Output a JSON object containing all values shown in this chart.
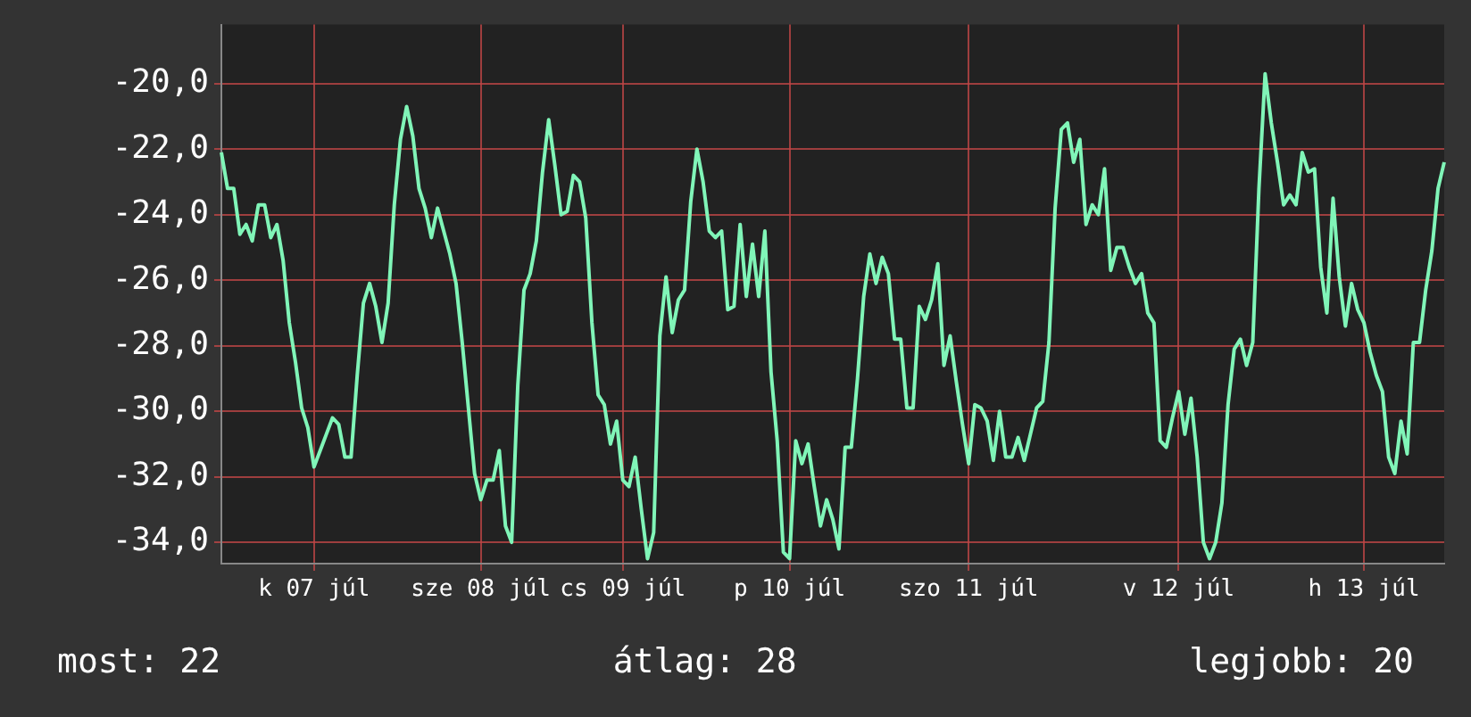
{
  "chart_data": {
    "type": "line",
    "categories": [
      null,
      null,
      null,
      null,
      null,
      null,
      null,
      null,
      null,
      null,
      null,
      null,
      null,
      null,
      null,
      "k 07 júl",
      null,
      null,
      null,
      null,
      null,
      null,
      null,
      null,
      null,
      null,
      null,
      null,
      null,
      null,
      null,
      null,
      null,
      null,
      null,
      null,
      null,
      null,
      null,
      null,
      null,
      null,
      "sze 08 júl",
      null,
      null,
      null,
      null,
      null,
      null,
      null,
      null,
      null,
      null,
      null,
      null,
      null,
      null,
      null,
      null,
      null,
      null,
      null,
      null,
      null,
      null,
      "cs 09 júl",
      null,
      null,
      null,
      null,
      null,
      null,
      null,
      null,
      null,
      null,
      null,
      null,
      null,
      null,
      null,
      null,
      null,
      null,
      null,
      null,
      null,
      null,
      null,
      null,
      null,
      null,
      "p 10 júl",
      null,
      null,
      null,
      null,
      null,
      null,
      null,
      null,
      null,
      null,
      null,
      null,
      null,
      null,
      null,
      null,
      null,
      null,
      null,
      null,
      null,
      null,
      null,
      null,
      null,
      null,
      null,
      null,
      "szo 11 júl",
      null,
      null,
      null,
      null,
      null,
      null,
      null,
      null,
      null,
      null,
      null,
      null,
      null,
      null,
      null,
      null,
      null,
      null,
      null,
      null,
      null,
      null,
      null,
      null,
      null,
      null,
      null,
      null,
      null,
      null,
      null,
      null,
      null,
      "v 12 júl",
      null,
      null,
      null,
      null,
      null,
      null,
      null,
      null,
      null,
      null,
      null,
      null,
      null,
      null,
      null,
      null,
      null,
      null,
      null,
      null,
      null,
      null,
      null,
      null,
      null,
      null,
      null,
      null,
      null,
      "h 13 júl",
      null,
      null,
      null,
      null,
      null,
      null,
      null,
      null,
      null,
      null,
      null,
      null,
      null
    ],
    "series": [
      {
        "color": "#80f5b8",
        "values": [
          -22.1,
          -23.2,
          -23.2,
          -24.6,
          -24.3,
          -24.8,
          -23.7,
          -23.7,
          -24.7,
          -24.3,
          -25.4,
          -27.3,
          -28.5,
          -29.9,
          -30.5,
          -31.7,
          -31.2,
          -30.7,
          -30.2,
          -30.4,
          -31.4,
          -31.4,
          -28.9,
          -26.7,
          -26.1,
          -26.8,
          -27.9,
          -26.7,
          -23.7,
          -21.7,
          -20.7,
          -21.6,
          -23.2,
          -23.8,
          -24.7,
          -23.8,
          -24.5,
          -25.2,
          -26.1,
          -27.9,
          -29.9,
          -31.9,
          -32.7,
          -32.1,
          -32.1,
          -31.2,
          -33.5,
          -34.0,
          -29.2,
          -26.3,
          -25.8,
          -24.8,
          -22.7,
          -21.1,
          -22.5,
          -24.0,
          -23.9,
          -22.8,
          -23.0,
          -24.1,
          -27.3,
          -29.5,
          -29.8,
          -31.0,
          -30.3,
          -32.1,
          -32.3,
          -31.4,
          -33.0,
          -34.5,
          -33.7,
          -27.7,
          -25.9,
          -27.6,
          -26.6,
          -26.3,
          -23.6,
          -22.0,
          -23.0,
          -24.5,
          -24.7,
          -24.5,
          -26.9,
          -26.8,
          -24.3,
          -26.5,
          -24.9,
          -26.5,
          -24.5,
          -28.8,
          -30.9,
          -34.3,
          -34.5,
          -30.9,
          -31.6,
          -31.0,
          -32.3,
          -33.5,
          -32.7,
          -33.3,
          -34.2,
          -31.1,
          -31.1,
          -29.0,
          -26.5,
          -25.2,
          -26.1,
          -25.3,
          -25.8,
          -27.8,
          -27.8,
          -29.9,
          -29.9,
          -26.8,
          -27.2,
          -26.6,
          -25.5,
          -28.6,
          -27.7,
          -29.1,
          -30.4,
          -31.6,
          -29.8,
          -29.9,
          -30.3,
          -31.5,
          -30.0,
          -31.4,
          -31.4,
          -30.8,
          -31.5,
          -30.7,
          -29.9,
          -29.7,
          -27.9,
          -23.8,
          -21.4,
          -21.2,
          -22.4,
          -21.7,
          -24.3,
          -23.7,
          -24.0,
          -22.6,
          -25.7,
          -25.0,
          -25.0,
          -25.6,
          -26.1,
          -25.8,
          -27.0,
          -27.3,
          -30.9,
          -31.1,
          -30.2,
          -29.4,
          -30.7,
          -29.6,
          -31.4,
          -34.0,
          -34.5,
          -34.0,
          -32.8,
          -29.8,
          -28.1,
          -27.8,
          -28.6,
          -27.9,
          -23.2,
          -19.7,
          -21.2,
          -22.4,
          -23.7,
          -23.4,
          -23.7,
          -22.1,
          -22.7,
          -22.6,
          -25.6,
          -27.0,
          -23.5,
          -25.9,
          -27.4,
          -26.1,
          -26.9,
          -27.3,
          -28.2,
          -28.9,
          -29.4,
          -31.4,
          -31.9,
          -30.3,
          -31.3,
          -27.9,
          -27.9,
          -26.3,
          -25.1,
          -23.2,
          -22.4
        ]
      }
    ],
    "ylim": [
      -34.65,
      -18.2
    ],
    "yticks": [
      {
        "value": -34,
        "label": "-34,0"
      },
      {
        "value": -32,
        "label": "-32,0"
      },
      {
        "value": -30,
        "label": "-30,0"
      },
      {
        "value": -28,
        "label": "-28,0"
      },
      {
        "value": -26,
        "label": "-26,0"
      },
      {
        "value": -24,
        "label": "-24,0"
      },
      {
        "value": -22,
        "label": "-22,0"
      },
      {
        "value": -20,
        "label": "-20,0"
      }
    ],
    "grid": true,
    "marker": "none",
    "line_style": "solid",
    "annotations": [
      "most: 22",
      "átlag: 28",
      "legjobb: 20"
    ]
  }
}
